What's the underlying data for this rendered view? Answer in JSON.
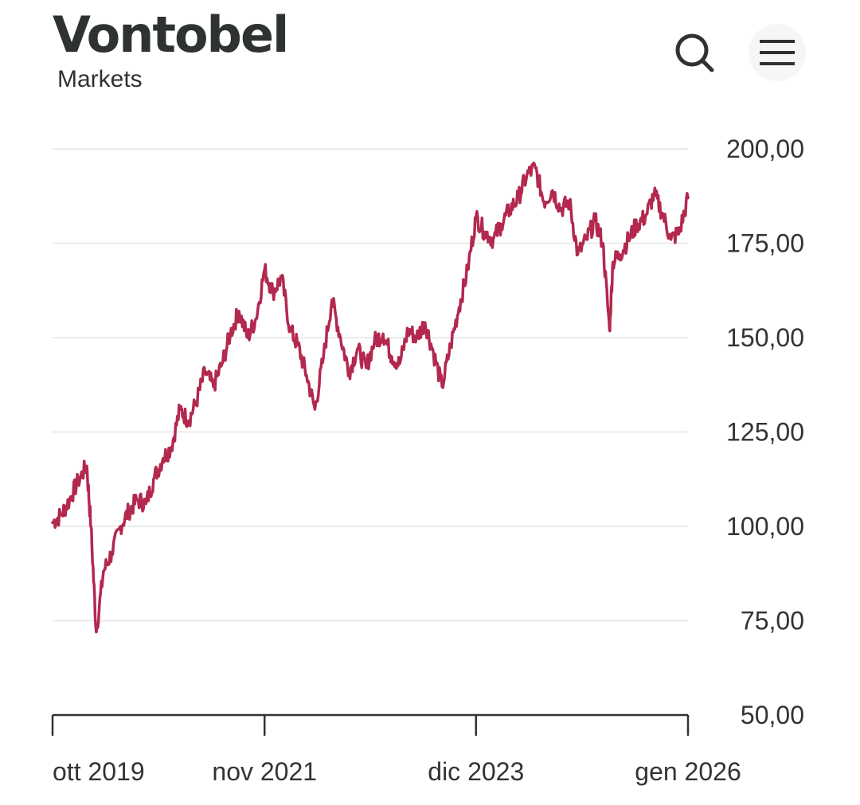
{
  "header": {
    "brand": "Vontobel",
    "subbrand": "Markets",
    "search_icon": "search-icon",
    "menu_icon": "hamburger-menu-icon"
  },
  "colors": {
    "line": "#b3284e",
    "grid": "#ebebeb",
    "axis": "#333333",
    "brand_text": "#2f3330"
  },
  "chart_data": {
    "type": "line",
    "title": "",
    "xlabel": "",
    "ylabel": "",
    "ylim": [
      50,
      200
    ],
    "yticks": [
      50,
      75,
      100,
      125,
      150,
      175,
      200
    ],
    "ytick_labels": [
      "50,00",
      "75,00",
      "100,00",
      "125,00",
      "150,00",
      "175,00",
      "200,00"
    ],
    "y_axis_side": "right",
    "grid": true,
    "xlim": [
      "2019-10-15",
      "2026-01-15"
    ],
    "xticks": [
      "2019-10-15",
      "2021-11-15",
      "2023-12-15",
      "2026-01-15"
    ],
    "xtick_labels": [
      "ott 2019",
      "nov 2021",
      "dic 2023",
      "gen 2026"
    ],
    "series": [
      {
        "x": [
          "2019-10-15",
          "2019-11-15",
          "2019-12-15",
          "2020-01-15",
          "2020-02-15",
          "2020-03-01",
          "2020-03-20",
          "2020-04-15",
          "2020-05-15",
          "2020-06-15",
          "2020-07-15",
          "2020-08-15",
          "2020-09-15",
          "2020-10-15",
          "2020-11-15",
          "2020-12-15",
          "2021-01-15",
          "2021-02-15",
          "2021-03-15",
          "2021-04-15",
          "2021-05-15",
          "2021-06-15",
          "2021-07-15",
          "2021-08-15",
          "2021-09-15",
          "2021-10-15",
          "2021-11-15",
          "2021-12-15",
          "2022-01-15",
          "2022-02-15",
          "2022-03-15",
          "2022-04-15",
          "2022-05-15",
          "2022-06-15",
          "2022-07-15",
          "2022-08-15",
          "2022-09-15",
          "2022-10-15",
          "2022-11-15",
          "2022-12-15",
          "2023-01-15",
          "2023-02-15",
          "2023-03-15",
          "2023-04-15",
          "2023-05-15",
          "2023-06-15",
          "2023-07-15",
          "2023-08-15",
          "2023-09-15",
          "2023-10-15",
          "2023-11-15",
          "2023-12-15",
          "2024-01-15",
          "2024-02-15",
          "2024-03-15",
          "2024-04-15",
          "2024-05-15",
          "2024-06-15",
          "2024-07-15",
          "2024-08-15",
          "2024-09-15",
          "2024-10-15",
          "2024-11-15",
          "2024-12-15",
          "2025-01-15",
          "2025-02-15",
          "2025-03-15",
          "2025-04-08",
          "2025-04-20",
          "2025-05-15",
          "2025-06-15",
          "2025-07-15",
          "2025-08-15",
          "2025-09-15",
          "2025-10-15",
          "2025-11-15",
          "2025-12-15",
          "2026-01-15"
        ],
        "values": [
          101,
          103,
          107,
          112,
          116,
          100,
          72,
          88,
          93,
          100,
          104,
          107,
          106,
          113,
          118,
          121,
          131,
          128,
          133,
          141,
          137,
          143,
          151,
          157,
          150,
          155,
          168,
          162,
          166,
          152,
          148,
          140,
          131,
          145,
          160,
          150,
          141,
          147,
          142,
          149,
          151,
          145,
          143,
          152,
          150,
          154,
          146,
          137,
          148,
          158,
          168,
          182,
          178,
          176,
          180,
          184,
          187,
          193,
          195,
          186,
          189,
          184,
          186,
          172,
          176,
          181,
          175,
          152,
          170,
          172,
          176,
          180,
          182,
          188,
          183,
          176,
          178,
          187
        ]
      }
    ]
  }
}
